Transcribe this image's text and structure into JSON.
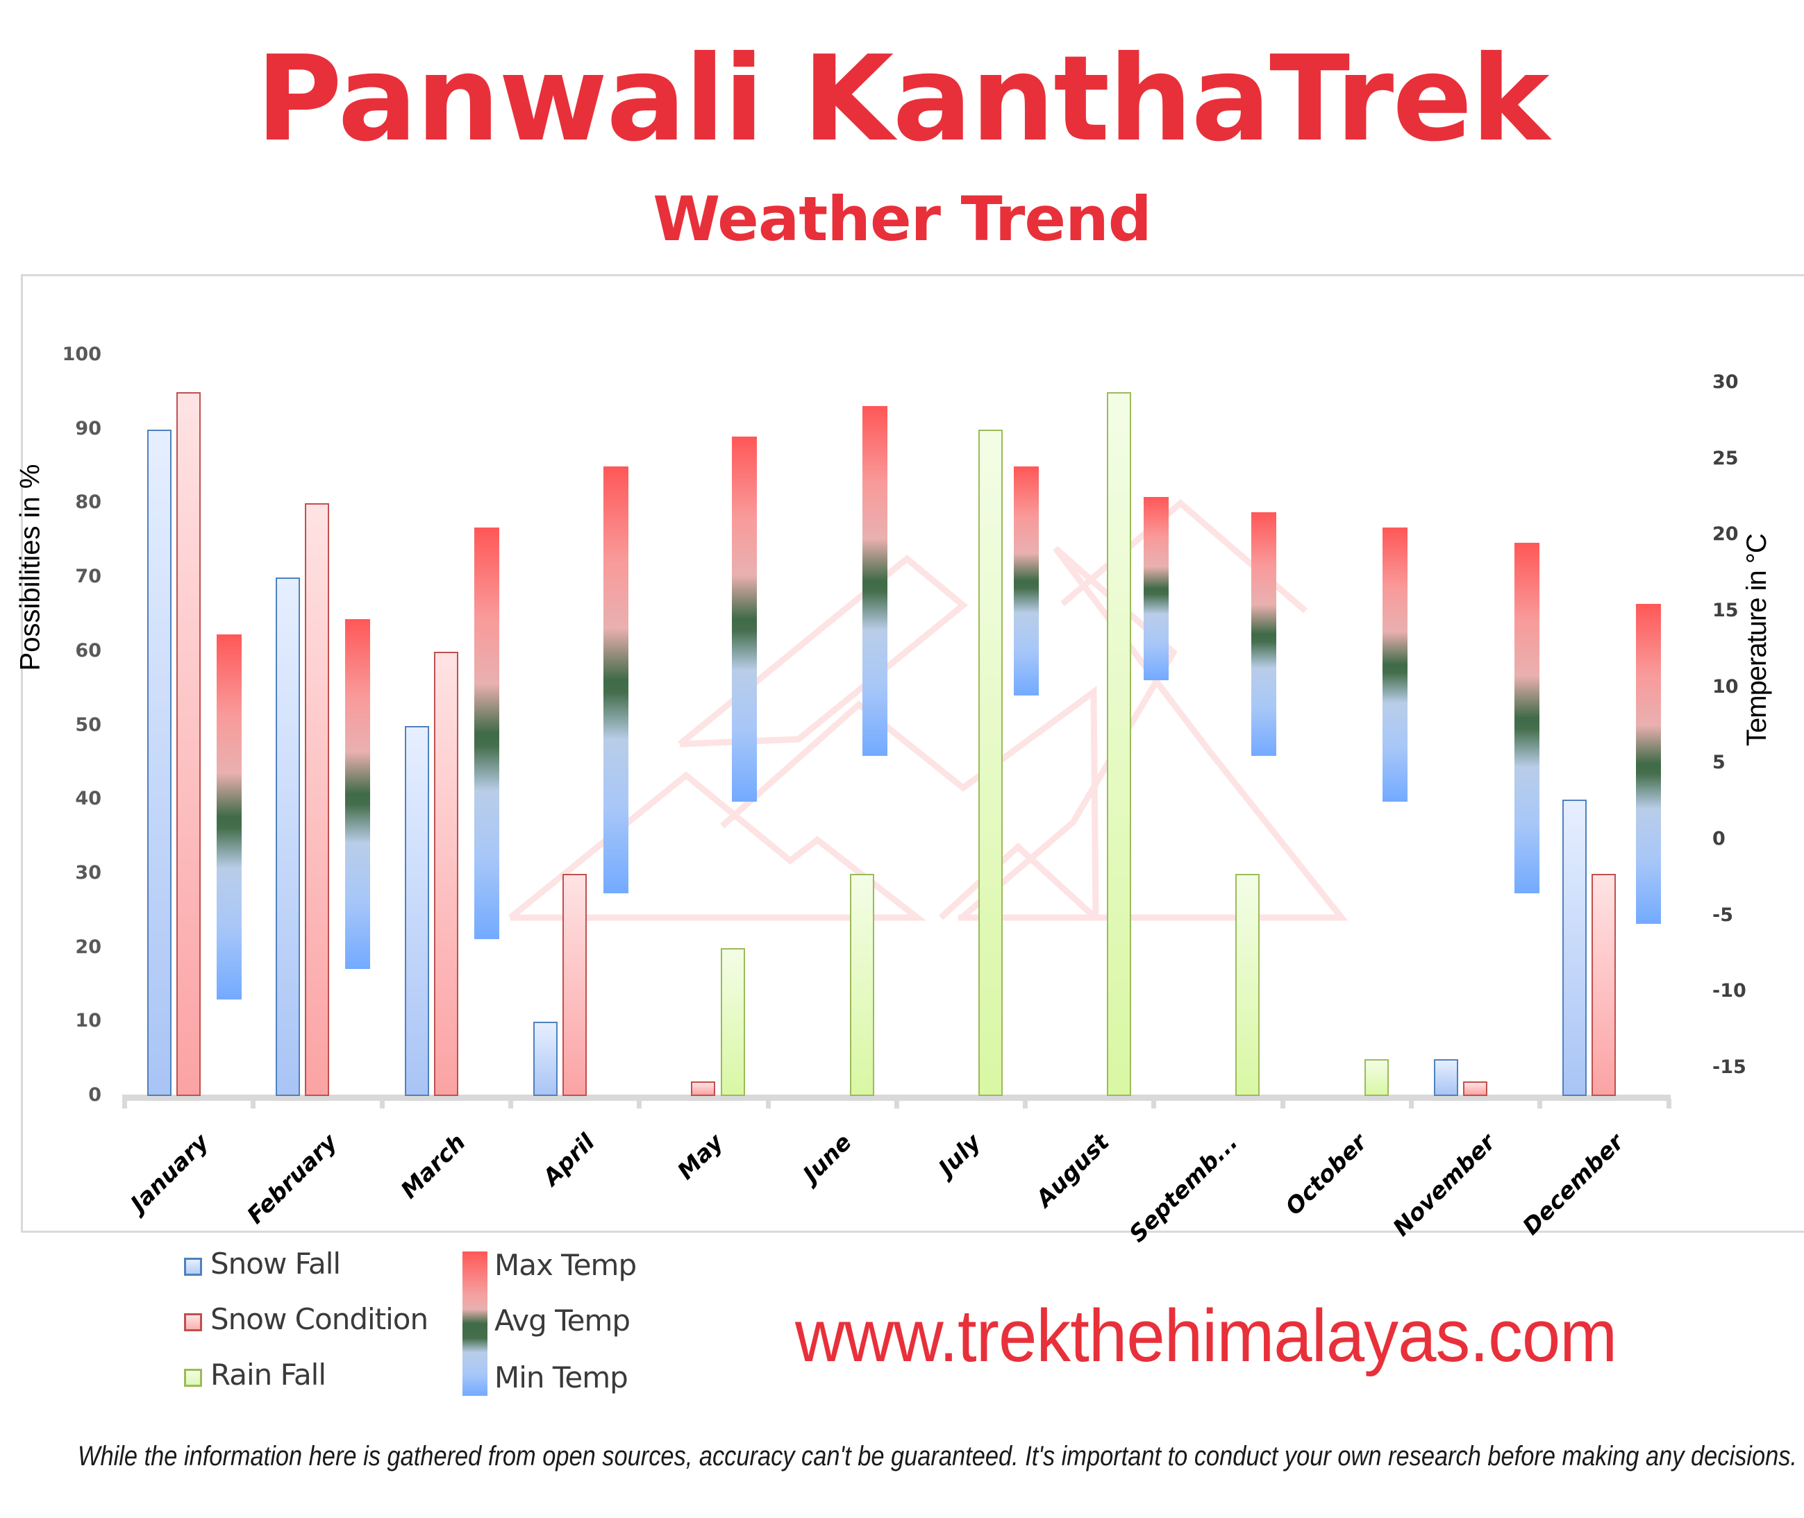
{
  "header": {
    "title": "Panwali KanthaTrek",
    "subtitle": "Weather Trend"
  },
  "footer": {
    "url": "www.trekthehimalayas.com",
    "disclaimer": "While the information here is gathered from open sources, accuracy can't be guaranteed. It's important to conduct your own research before making any decisions."
  },
  "colors": {
    "title": "#E8303A",
    "snow_fall": "#4f81bd",
    "snow_condition": "#c0504d",
    "rain_fall": "#9bbb59",
    "max_temp": "#ff5757",
    "avg_temp": "#3f6b48",
    "min_temp": "#73aaff"
  },
  "chart_data": {
    "type": "bar",
    "title": "Panwali KanthaTrek",
    "subtitle": "Weather Trend",
    "categories": [
      "January",
      "February",
      "March",
      "April",
      "May",
      "June",
      "July",
      "August",
      "Septemb...",
      "October",
      "November",
      "December"
    ],
    "ylabel": "Possibilities in %",
    "y2label": "Temperature in °C",
    "ylim": [
      0,
      100
    ],
    "y2lim": [
      -15,
      30
    ],
    "yticks": [
      "100",
      "90",
      "80",
      "70",
      "60",
      "50",
      "40",
      "30",
      "20",
      "10",
      "0"
    ],
    "y2ticks": [
      "30",
      "25",
      "20",
      "15",
      "10",
      "5",
      "0",
      "-5",
      "-10",
      "-15"
    ],
    "grid": false,
    "legend_position": "bottom-left",
    "series": [
      {
        "name": "Snow Fall",
        "axis": "left",
        "values": [
          90,
          70,
          50,
          10,
          0,
          0,
          0,
          0,
          0,
          0,
          5,
          40
        ]
      },
      {
        "name": "Snow Condition",
        "axis": "left",
        "values": [
          95,
          80,
          60,
          30,
          2,
          0,
          0,
          0,
          0,
          0,
          2,
          30
        ]
      },
      {
        "name": "Rain Fall",
        "axis": "left",
        "values": [
          0,
          0,
          0,
          0,
          20,
          30,
          90,
          95,
          30,
          5,
          0,
          0
        ]
      },
      {
        "name": "Max Temp",
        "axis": "right",
        "values": [
          13.5,
          14.5,
          20.5,
          24.5,
          26.5,
          28.5,
          24.5,
          22.5,
          21.5,
          20.5,
          19.5,
          15.5
        ]
      },
      {
        "name": "Avg Temp",
        "axis": "right",
        "values": [
          1.5,
          3,
          7,
          10.5,
          14.5,
          17,
          17,
          16.5,
          13.5,
          11.5,
          8,
          5
        ]
      },
      {
        "name": "Min Temp",
        "axis": "right",
        "values": [
          -10.5,
          -8.5,
          -6.5,
          -3.5,
          2.5,
          5.5,
          9.5,
          10.5,
          5.5,
          2.5,
          -3.5,
          -5.5
        ]
      }
    ]
  },
  "legend": {
    "items": [
      {
        "label": "Snow Fall"
      },
      {
        "label": "Snow Condition"
      },
      {
        "label": "Rain Fall"
      },
      {
        "label": "Max Temp"
      },
      {
        "label": "Avg Temp"
      },
      {
        "label": "Min Temp"
      }
    ]
  }
}
